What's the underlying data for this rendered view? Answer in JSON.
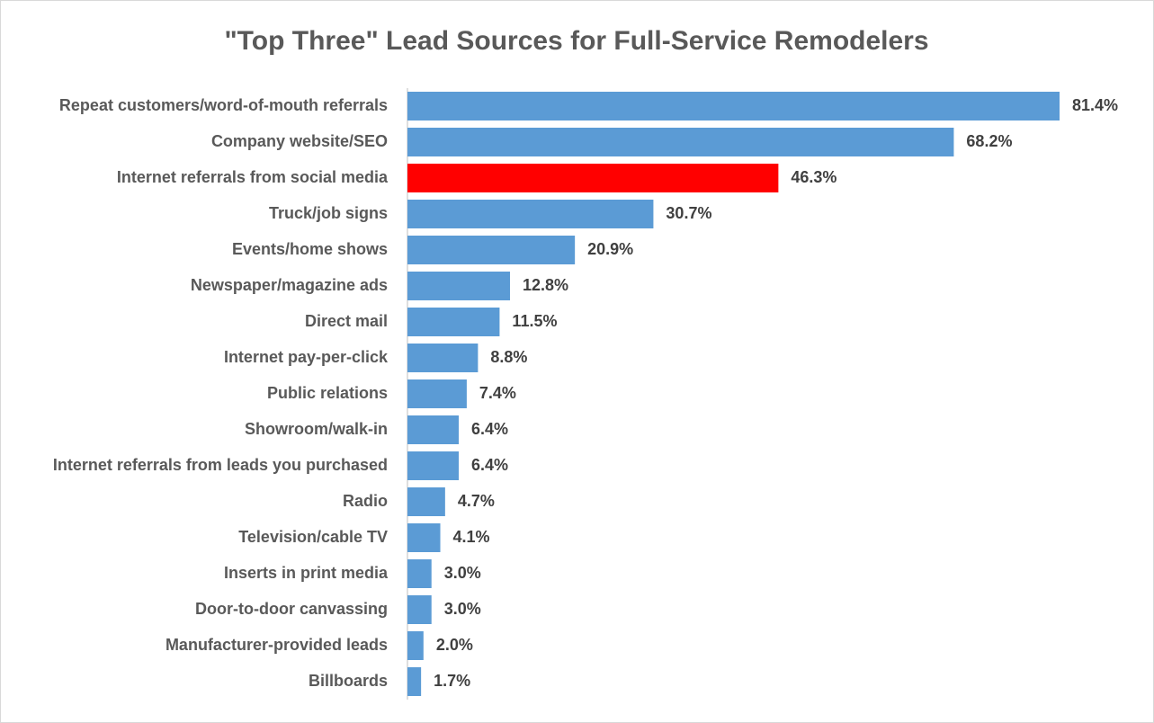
{
  "chart_data": {
    "type": "bar",
    "orientation": "horizontal",
    "title": "\"Top Three\" Lead Sources for Full-Service Remodelers",
    "categories": [
      "Repeat customers/word-of-mouth referrals",
      "Company website/SEO",
      "Internet referrals from social media",
      "Truck/job signs",
      "Events/home shows",
      "Newspaper/magazine ads",
      "Direct mail",
      "Internet pay-per-click",
      "Public relations",
      "Showroom/walk-in",
      "Internet referrals from leads you purchased",
      "Radio",
      "Television/cable TV",
      "Inserts in print media",
      "Door-to-door  canvassing",
      "Manufacturer-provided leads",
      "Billboards"
    ],
    "values": [
      81.4,
      68.2,
      46.3,
      30.7,
      20.9,
      12.8,
      11.5,
      8.8,
      7.4,
      6.4,
      6.4,
      4.7,
      4.1,
      3.0,
      3.0,
      2.0,
      1.7
    ],
    "value_labels": [
      "81.4%",
      "68.2%",
      "46.3%",
      "30.7%",
      "20.9%",
      "12.8%",
      "11.5%",
      "8.8%",
      "7.4%",
      "6.4%",
      "6.4%",
      "4.7%",
      "4.1%",
      "3.0%",
      "3.0%",
      "2.0%",
      "1.7%"
    ],
    "colors": [
      "#5b9bd5",
      "#5b9bd5",
      "#ff0000",
      "#5b9bd5",
      "#5b9bd5",
      "#5b9bd5",
      "#5b9bd5",
      "#5b9bd5",
      "#5b9bd5",
      "#5b9bd5",
      "#5b9bd5",
      "#5b9bd5",
      "#5b9bd5",
      "#5b9bd5",
      "#5b9bd5",
      "#5b9bd5",
      "#5b9bd5"
    ]
  }
}
